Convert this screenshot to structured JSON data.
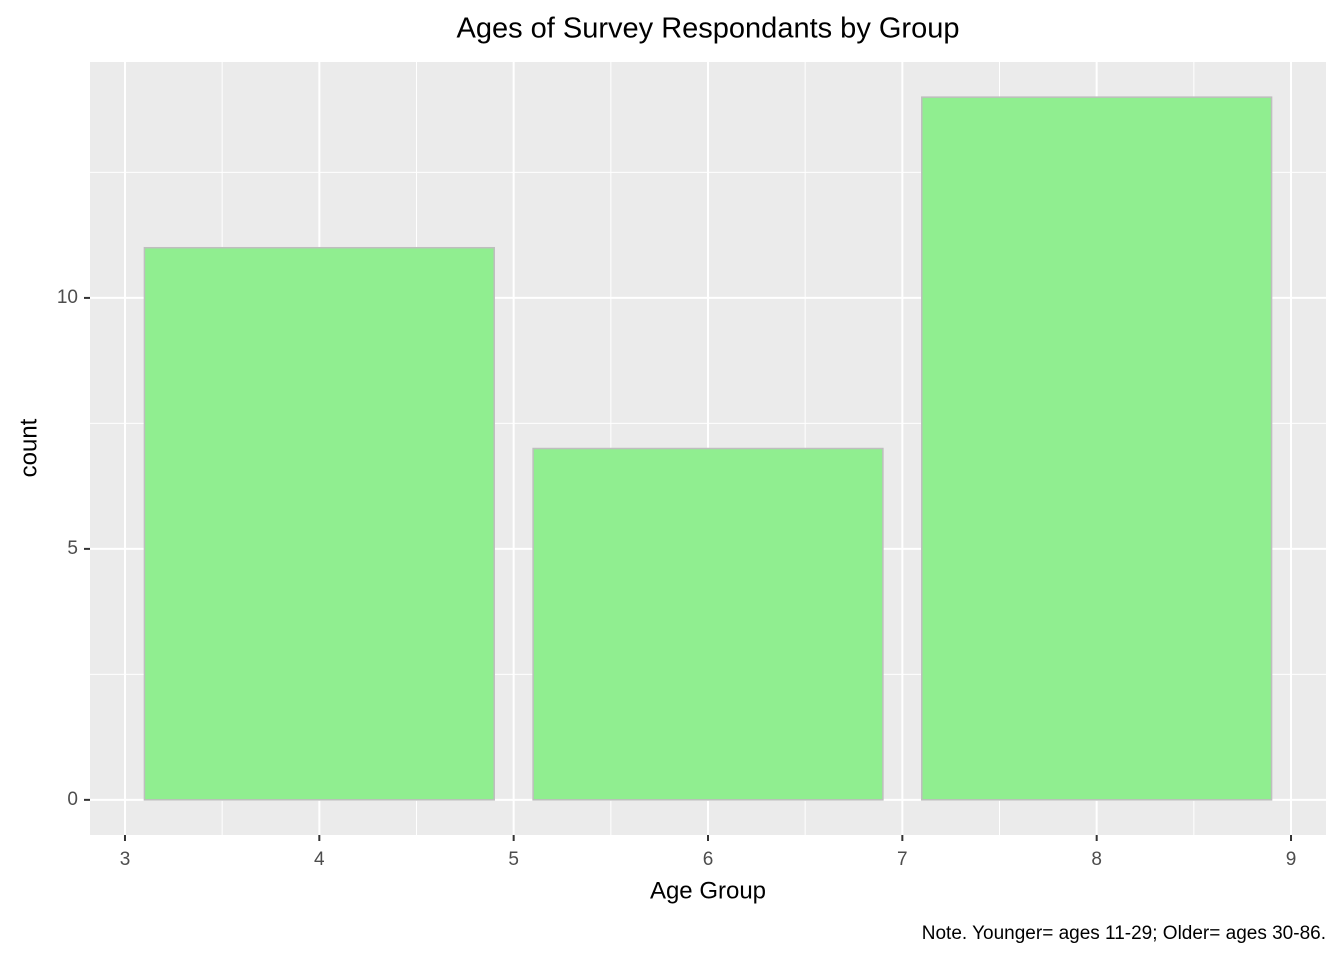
{
  "chart_data": {
    "type": "bar",
    "title": "Ages of Survey Respondants by Group",
    "x_label": "Age Group",
    "y_label": "count",
    "caption": "Note. Younger= ages 11-29; Older= ages 30-86.",
    "x": [
      4,
      6,
      8
    ],
    "values": [
      11,
      7,
      14
    ],
    "color": "#90ee90",
    "edge_color": "#bebebe",
    "xlim": [
      2.82,
      9.18
    ],
    "ylim": [
      -0.7,
      14.7
    ],
    "xticks": [
      3,
      4,
      5,
      6,
      7,
      8,
      9
    ],
    "yticks": [
      0,
      5,
      10
    ],
    "xminor": [
      3.5,
      4.5,
      5.5,
      6.5,
      7.5,
      8.5
    ],
    "yminor": [
      2.5,
      7.5,
      12.5
    ],
    "grid": true
  }
}
